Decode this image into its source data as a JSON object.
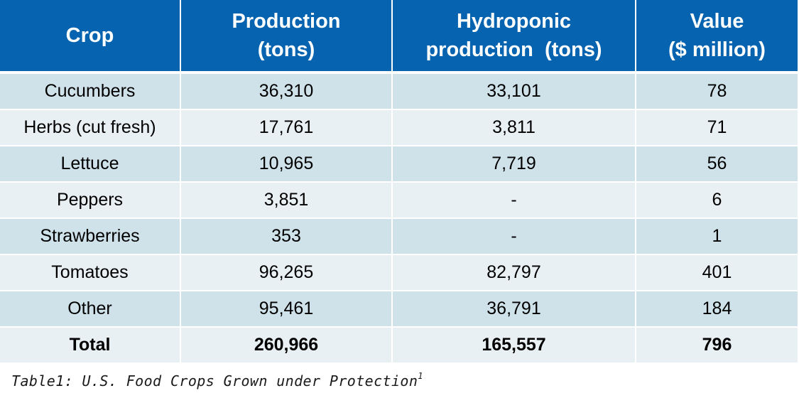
{
  "colors": {
    "header_bg": "#0563b0",
    "row_dark": "#cfe2ea",
    "row_light": "#e8f0f4"
  },
  "table": {
    "headers": [
      {
        "line1": "Crop",
        "line2": ""
      },
      {
        "line1": "Production",
        "line2": "(tons)"
      },
      {
        "line1": "Hydroponic",
        "line2": "production  (tons)"
      },
      {
        "line1": "Value",
        "line2": "($ million)"
      }
    ],
    "rows": [
      [
        "Cucumbers",
        "36,310",
        "33,101",
        "78"
      ],
      [
        "Herbs (cut fresh)",
        "17,761",
        "3,811",
        "71"
      ],
      [
        "Lettuce",
        "10,965",
        "7,719",
        "56"
      ],
      [
        "Peppers",
        "3,851",
        "-",
        "6"
      ],
      [
        "Strawberries",
        "353",
        "-",
        "1"
      ],
      [
        "Tomatoes",
        "96,265",
        "82,797",
        "401"
      ],
      [
        "Other",
        "95,461",
        "36,791",
        "184"
      ]
    ],
    "total": [
      "Total",
      "260,966",
      "165,557",
      "796"
    ]
  },
  "caption": {
    "text": "Table1: U.S. Food Crops Grown under Protection",
    "footnote": "1"
  }
}
